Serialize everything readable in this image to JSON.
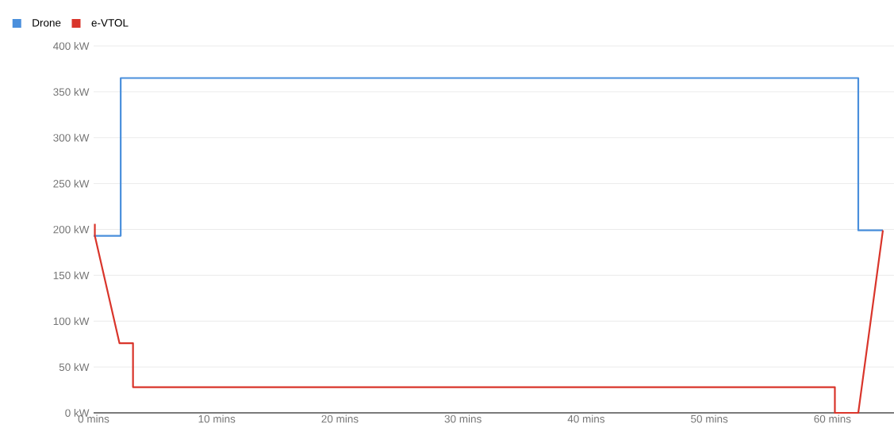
{
  "chart_data": {
    "type": "line",
    "series": [
      {
        "name": "Drone",
        "color": "#4a8fdc",
        "x": [
          0,
          2.2,
          2.2,
          62.1,
          62.1,
          64.1
        ],
        "values": [
          193,
          193,
          365,
          365,
          199,
          199
        ]
      },
      {
        "name": "e-VTOL",
        "color": "#d9352b",
        "x": [
          0.1,
          0.1,
          2.1,
          3.2,
          3.2,
          60.2,
          60.2,
          62.1,
          64.1
        ],
        "values": [
          206,
          193,
          76,
          76,
          28,
          28,
          0,
          0,
          199
        ]
      }
    ],
    "xlim": [
      0,
      65
    ],
    "xticks": [
      {
        "value": 0,
        "label": "0 mins"
      },
      {
        "value": 10,
        "label": "10 mins"
      },
      {
        "value": 20,
        "label": "20 mins"
      },
      {
        "value": 30,
        "label": "30 mins"
      },
      {
        "value": 40,
        "label": "40 mins"
      },
      {
        "value": 50,
        "label": "50 mins"
      },
      {
        "value": 60,
        "label": "60 mins"
      }
    ],
    "ylim": [
      0,
      400
    ],
    "yticks": [
      {
        "value": 0,
        "label": "0 kW"
      },
      {
        "value": 50,
        "label": "50 kW"
      },
      {
        "value": 100,
        "label": "100 kW"
      },
      {
        "value": 150,
        "label": "150 kW"
      },
      {
        "value": 200,
        "label": "200 kW"
      },
      {
        "value": 250,
        "label": "250 kW"
      },
      {
        "value": 300,
        "label": "300 kW"
      },
      {
        "value": 350,
        "label": "350 kW"
      },
      {
        "value": 400,
        "label": "400 kW"
      }
    ],
    "grid": "y",
    "legend": "top left",
    "marker": "none",
    "line_style": "solid"
  }
}
